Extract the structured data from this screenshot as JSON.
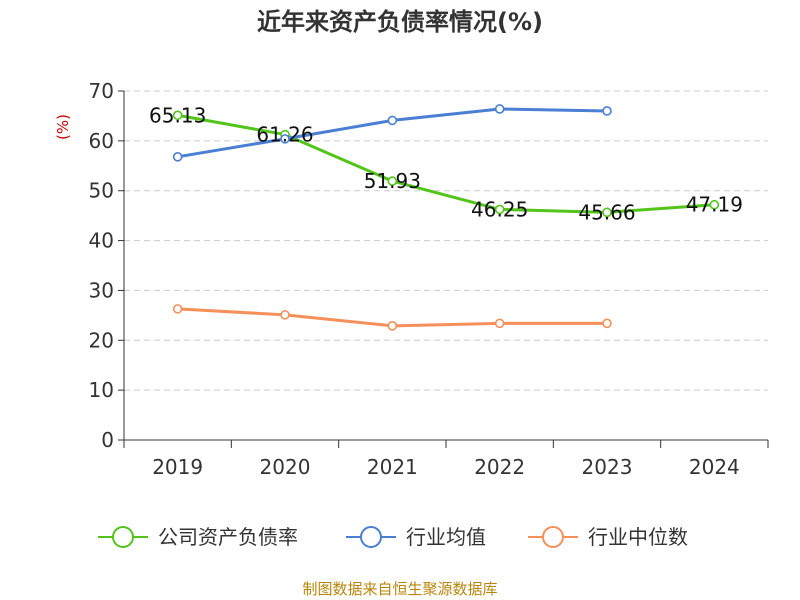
{
  "chart_data": {
    "type": "line",
    "title": "近年来资产负债率情况(%)",
    "ylabel": "(%)",
    "xlabel": "",
    "categories": [
      "2019",
      "2020",
      "2021",
      "2022",
      "2023",
      "2024"
    ],
    "ylim": [
      0,
      70
    ],
    "yticks": [
      0,
      10,
      20,
      30,
      40,
      50,
      60,
      70
    ],
    "grid": true,
    "legend_position": "bottom",
    "series": [
      {
        "name": "公司资产负债率",
        "color": "#52c41a",
        "values": [
          65.13,
          61.26,
          51.93,
          46.25,
          45.66,
          47.19
        ],
        "labels": [
          "65.13",
          "61.26",
          "51.93",
          "46.25",
          "45.66",
          "47.19"
        ]
      },
      {
        "name": "行业均值",
        "color": "#4a7fd4",
        "values": [
          56.8,
          60.4,
          64.1,
          66.4,
          66.0,
          null
        ],
        "labels": []
      },
      {
        "name": "行业中位数",
        "color": "#f5905a",
        "values": [
          26.3,
          25.1,
          22.9,
          23.4,
          23.4,
          null
        ],
        "labels": []
      }
    ]
  },
  "footer": {
    "source": "制图数据来自恒生聚源数据库"
  }
}
